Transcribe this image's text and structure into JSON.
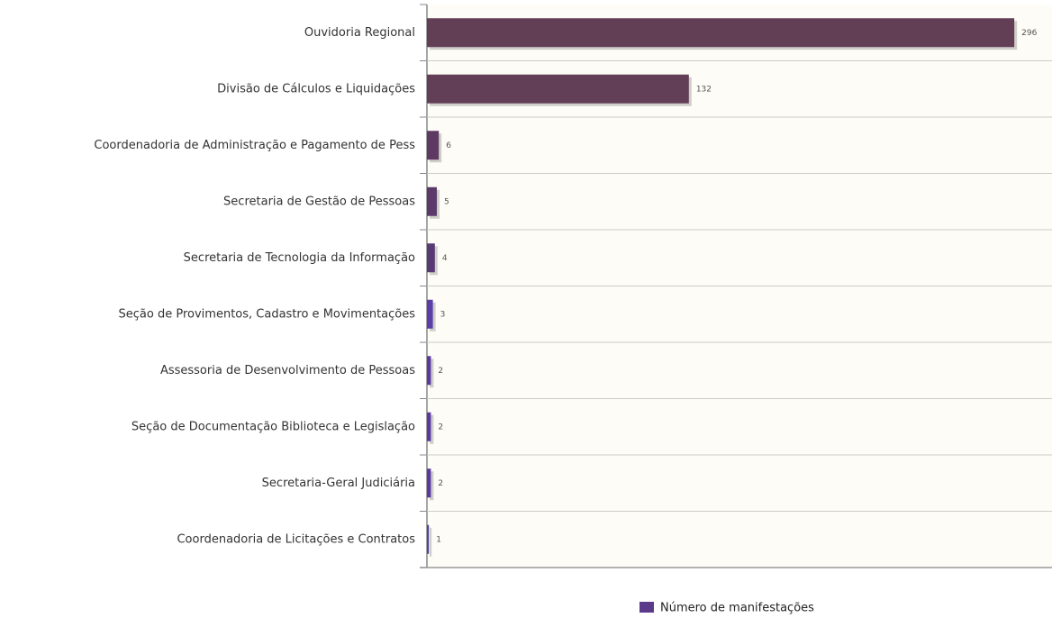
{
  "chart_data": {
    "type": "bar",
    "orientation": "horizontal",
    "categories": [
      "Ouvidoria Regional",
      "Divisão de Cálculos e Liquidações",
      "Coordenadoria de Administração e Pagamento de Pess",
      "Secretaria de Gestão de Pessoas",
      "Secretaria de Tecnologia da Informação",
      "Seção de Provimentos, Cadastro e Movimentações",
      "Assessoria de Desenvolvimento de Pessoas",
      "Seção de Documentação Biblioteca e Legislação",
      "Secretaria-Geral Judiciária",
      "Coordenadoria de Licitações e Contratos"
    ],
    "series": [
      {
        "name": "Número de manifestações",
        "color": "#5b3a8a",
        "colors": [
          "#633f56",
          "#633f57",
          "#5e3a63",
          "#5b3a6b",
          "#583a75",
          "#5c3ea8",
          "#5a3aa0",
          "#5a3aa0",
          "#5a3aa0",
          "#5240a0"
        ],
        "values": [
          296,
          132,
          6,
          5,
          4,
          3,
          2,
          2,
          2,
          1
        ]
      }
    ],
    "xlim": [
      0,
      315
    ],
    "grid": true,
    "legend": "bottom"
  }
}
